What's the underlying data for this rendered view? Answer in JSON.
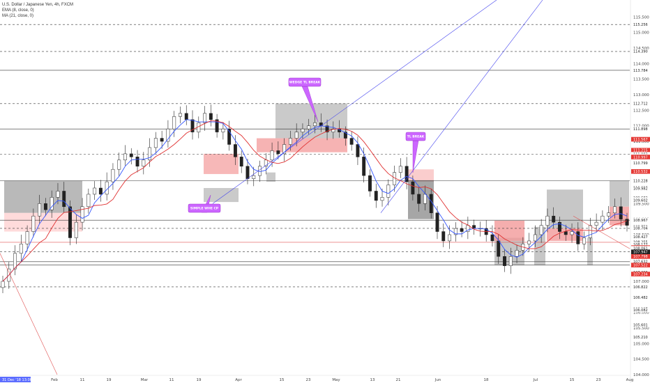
{
  "header": {
    "symbol": "U.S. Dollar / Japanese Yen, 4h, FXCM",
    "ema": "EMA (8, close, 0)",
    "ma": "MA (21, close, 0)"
  },
  "chart_data": {
    "type": "candlestick",
    "ylim": [
      104.0,
      116.0
    ],
    "y_ticks": [
      "115.500",
      "115.000",
      "114.500",
      "114.000",
      "113.500",
      "113.000",
      "112.500",
      "112.000",
      "111.500",
      "111.000",
      "110.500",
      "110.000",
      "109.500",
      "109.000",
      "108.500",
      "108.000",
      "107.500",
      "107.000",
      "106.500",
      "106.000",
      "105.500",
      "105.000",
      "104.500",
      "104.000"
    ],
    "x_ticks": [
      "Feb",
      "11",
      "19",
      "Mar",
      "11",
      "19",
      "Apr",
      "15",
      "23",
      "May",
      "13",
      "21",
      "Jun",
      "18",
      "Jul",
      "15",
      "23",
      "Aug"
    ],
    "start_date_label": "31 Dec '18  13:00",
    "price_labels": [
      {
        "v": 115.256,
        "text": "115.256",
        "kind": "line"
      },
      {
        "v": 114.39,
        "text": "114.390",
        "kind": "line"
      },
      {
        "v": 113.784,
        "text": "113.784",
        "kind": "line"
      },
      {
        "v": 112.713,
        "text": "112.713",
        "kind": "line"
      },
      {
        "v": 112.712,
        "text": "112.712",
        "kind": "line"
      },
      {
        "v": 111.898,
        "text": "111.898",
        "kind": "line"
      },
      {
        "v": 111.569,
        "text": "111.569",
        "kind": "line"
      },
      {
        "v": 111.567,
        "text": "111.567",
        "kind": "sell"
      },
      {
        "v": 111.215,
        "text": "111.215",
        "kind": "sell"
      },
      {
        "v": 111.083,
        "text": "111.083",
        "kind": "line"
      },
      {
        "v": 111.027,
        "text": "111.027",
        "kind": "line"
      },
      {
        "v": 110.997,
        "text": "110.997",
        "kind": "sell"
      },
      {
        "v": 110.799,
        "text": "110.799",
        "kind": "line"
      },
      {
        "v": 110.532,
        "text": "110.532",
        "kind": "sell"
      },
      {
        "v": 110.238,
        "text": "110.238",
        "kind": "line"
      },
      {
        "v": 110.228,
        "text": "110.228",
        "kind": "line"
      },
      {
        "v": 110.016,
        "text": "110.016",
        "kind": "line"
      },
      {
        "v": 109.982,
        "text": "109.982",
        "kind": "line"
      },
      {
        "v": 109.682,
        "text": "109.682",
        "kind": "line"
      },
      {
        "v": 109.624,
        "text": "109.624",
        "kind": "line"
      },
      {
        "v": 109.602,
        "text": "109.602",
        "kind": "line"
      },
      {
        "v": 108.967,
        "text": "108.967",
        "kind": "line"
      },
      {
        "v": 108.774,
        "text": "108.774",
        "kind": "line"
      },
      {
        "v": 108.758,
        "text": "108.758",
        "kind": "line"
      },
      {
        "v": 108.704,
        "text": "108.704",
        "kind": "line"
      },
      {
        "v": 108.427,
        "text": "108.427",
        "kind": "line"
      },
      {
        "v": 108.232,
        "text": "108.232",
        "kind": "sell"
      },
      {
        "v": 108.255,
        "text": "108.255",
        "kind": "line"
      },
      {
        "v": 108.177,
        "text": "108.177",
        "kind": "line"
      },
      {
        "v": 108.083,
        "text": "108.083",
        "kind": "sell"
      },
      {
        "v": 108.061,
        "text": "108.061",
        "kind": "line"
      },
      {
        "v": 107.947,
        "text": "107.947",
        "kind": "dark"
      },
      {
        "v": 107.798,
        "text": "107.798",
        "kind": "sell"
      },
      {
        "v": 107.641,
        "text": "107.641",
        "kind": "line"
      },
      {
        "v": 107.632,
        "text": "107.632",
        "kind": "line"
      },
      {
        "v": 107.522,
        "text": "107.522",
        "kind": "sell"
      },
      {
        "v": 107.29,
        "text": "107.290",
        "kind": "line"
      },
      {
        "v": 107.234,
        "text": "107.234",
        "kind": "sell"
      },
      {
        "v": 106.822,
        "text": "106.822",
        "kind": "line"
      },
      {
        "v": 106.482,
        "text": "106.482",
        "kind": "line"
      },
      {
        "v": 106.127,
        "text": "106.127",
        "kind": "line"
      },
      {
        "v": 106.082,
        "text": "106.082",
        "kind": "line"
      },
      {
        "v": 105.601,
        "text": "105.601",
        "kind": "line"
      },
      {
        "v": 105.21,
        "text": "105.210",
        "kind": "line"
      }
    ],
    "annotations": [
      {
        "text": "WEDGE TL BREAK"
      },
      {
        "text": "TL BREAK"
      },
      {
        "text": "SIMPLE WHE CP"
      }
    ],
    "close_series": [
      107.0,
      107.4,
      107.9,
      108.2,
      108.6,
      109.1,
      109.5,
      109.3,
      109.7,
      109.9,
      109.4,
      108.4,
      108.9,
      109.4,
      109.8,
      110.0,
      109.8,
      110.2,
      110.6,
      110.9,
      111.1,
      111.0,
      110.7,
      110.9,
      111.3,
      111.6,
      111.5,
      111.9,
      112.3,
      112.4,
      112.2,
      111.8,
      112.1,
      112.4,
      112.2,
      111.8,
      111.9,
      111.4,
      111.0,
      110.7,
      110.3,
      110.4,
      110.7,
      110.9,
      111.2,
      111.1,
      111.4,
      111.6,
      111.8,
      111.9,
      112.0,
      112.1,
      112.0,
      111.8,
      111.9,
      111.8,
      111.6,
      111.4,
      111.0,
      110.4,
      109.9,
      109.6,
      109.7,
      110.1,
      110.5,
      110.7,
      110.2,
      109.8,
      109.5,
      109.8,
      109.2,
      108.6,
      108.3,
      108.5,
      108.7,
      108.6,
      108.8,
      108.7,
      108.7,
      108.5,
      108.3,
      107.8,
      107.5,
      107.8,
      108.0,
      108.2,
      108.3,
      108.5,
      108.8,
      109.1,
      108.9,
      108.6,
      108.5,
      108.6,
      108.2,
      108.4,
      108.8,
      108.9,
      109.1,
      109.2,
      109.4,
      109.0,
      108.8
    ]
  }
}
